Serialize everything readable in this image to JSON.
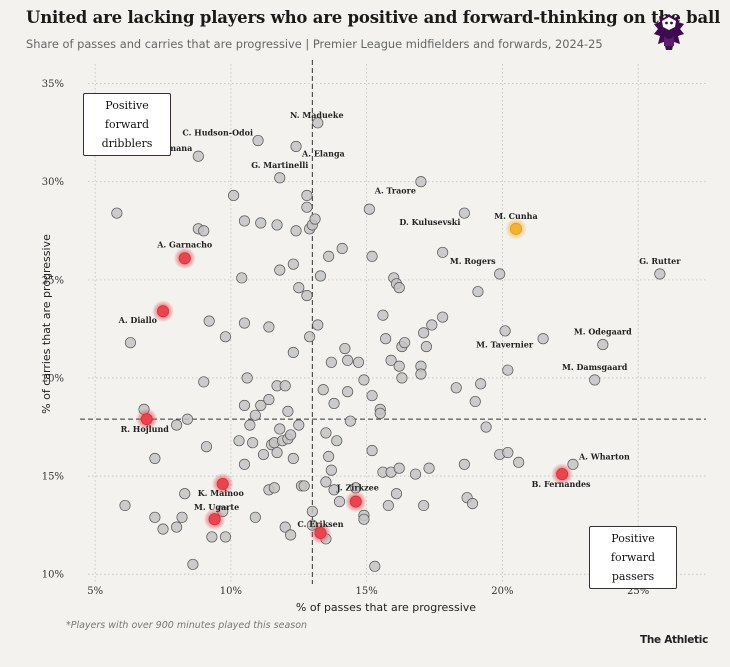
{
  "header": {
    "title": "United are lacking players who are positive and forward-thinking on the ball",
    "subtitle": "Share of passes and carries that are progressive | Premier League midfielders and forwards, 2024-25"
  },
  "annotations": {
    "top_left_box": [
      "Positive forward",
      "dribblers"
    ],
    "bottom_right_box": [
      "Positive forward",
      "passers"
    ]
  },
  "footer": {
    "note": "*Players with over 900 minutes played this season",
    "brand": "The Athletic"
  },
  "colors": {
    "background": "#f3f2ee",
    "neutral_dot": "#c4c4c4",
    "united_highlight": "#e8454f",
    "cunha_highlight": "#f2b233",
    "reference_line": "#333333"
  },
  "chart_data": {
    "type": "scatter",
    "xlabel": "% of passes that are progressive",
    "ylabel": "% of carries that are progressive",
    "xlim": [
      4,
      27.5
    ],
    "ylim": [
      9.5,
      36
    ],
    "x_ticks": [
      5,
      10,
      15,
      20,
      25
    ],
    "y_ticks": [
      10,
      15,
      20,
      25,
      30,
      35
    ],
    "x_tick_labels": [
      "5%",
      "10%",
      "15%",
      "20%",
      "25%"
    ],
    "y_tick_labels": [
      "10%",
      "15%",
      "20%",
      "25%",
      "30%",
      "35%"
    ],
    "grid": true,
    "reference_lines": {
      "x": 13.0,
      "y": 17.9
    },
    "labeled_players": [
      {
        "name": "C. Hudson-Odoi",
        "x": 11.0,
        "y": 32.1,
        "highlight": "none"
      },
      {
        "name": "N. Madueke",
        "x": 13.2,
        "y": 33.0,
        "highlight": "none"
      },
      {
        "name": "K. Sulemana",
        "x": 8.8,
        "y": 31.3,
        "highlight": "none"
      },
      {
        "name": "A. Elanga",
        "x": 12.4,
        "y": 31.8,
        "highlight": "none"
      },
      {
        "name": "G. Martinelli",
        "x": 11.8,
        "y": 30.2,
        "highlight": "none"
      },
      {
        "name": "A. Traore",
        "x": 17.0,
        "y": 30.0,
        "highlight": "none"
      },
      {
        "name": "D. Kulusevski",
        "x": 18.6,
        "y": 28.4,
        "highlight": "none"
      },
      {
        "name": "M. Cunha",
        "x": 20.5,
        "y": 27.6,
        "highlight": "gold"
      },
      {
        "name": "A. Garnacho",
        "x": 8.3,
        "y": 26.1,
        "highlight": "red"
      },
      {
        "name": "M. Rogers",
        "x": 19.9,
        "y": 25.3,
        "highlight": "none"
      },
      {
        "name": "G. Rutter",
        "x": 25.8,
        "y": 25.3,
        "highlight": "none"
      },
      {
        "name": "A. Diallo",
        "x": 7.5,
        "y": 23.4,
        "highlight": "red"
      },
      {
        "name": "M. Odegaard",
        "x": 23.7,
        "y": 21.7,
        "highlight": "none"
      },
      {
        "name": "M. Tavernier",
        "x": 21.5,
        "y": 22.0,
        "highlight": "none"
      },
      {
        "name": "M. Damsgaard",
        "x": 23.4,
        "y": 19.9,
        "highlight": "none"
      },
      {
        "name": "R. Hojlund",
        "x": 6.9,
        "y": 17.9,
        "highlight": "red"
      },
      {
        "name": "A. Wharton",
        "x": 22.6,
        "y": 15.6,
        "highlight": "none"
      },
      {
        "name": "B. Fernandes",
        "x": 22.2,
        "y": 15.1,
        "highlight": "red"
      },
      {
        "name": "K. Mainoo",
        "x": 9.7,
        "y": 14.6,
        "highlight": "red"
      },
      {
        "name": "J. Zirkzee",
        "x": 14.6,
        "y": 13.7,
        "highlight": "red"
      },
      {
        "name": "M. Ugarte",
        "x": 9.4,
        "y": 12.8,
        "highlight": "red"
      },
      {
        "name": "C. Eriksen",
        "x": 13.3,
        "y": 12.1,
        "highlight": "red"
      }
    ],
    "other_players": [
      [
        5.8,
        28.4
      ],
      [
        6.3,
        21.8
      ],
      [
        6.1,
        13.5
      ],
      [
        6.8,
        18.4
      ],
      [
        7.2,
        15.9
      ],
      [
        7.2,
        12.9
      ],
      [
        7.5,
        12.3
      ],
      [
        8.0,
        17.6
      ],
      [
        8.0,
        12.4
      ],
      [
        8.2,
        12.9
      ],
      [
        8.3,
        14.1
      ],
      [
        8.4,
        17.9
      ],
      [
        8.6,
        10.5
      ],
      [
        8.8,
        27.6
      ],
      [
        9.0,
        27.5
      ],
      [
        9.0,
        19.8
      ],
      [
        9.1,
        16.5
      ],
      [
        9.2,
        22.9
      ],
      [
        9.3,
        11.9
      ],
      [
        9.7,
        13.2
      ],
      [
        9.8,
        11.9
      ],
      [
        9.8,
        22.1
      ],
      [
        10.1,
        29.3
      ],
      [
        10.4,
        25.1
      ],
      [
        10.5,
        28.0
      ],
      [
        10.5,
        22.8
      ],
      [
        10.5,
        18.6
      ],
      [
        10.5,
        15.6
      ],
      [
        10.3,
        16.8
      ],
      [
        10.6,
        20.0
      ],
      [
        10.7,
        17.6
      ],
      [
        10.8,
        16.7
      ],
      [
        10.9,
        18.1
      ],
      [
        10.9,
        12.9
      ],
      [
        11.1,
        27.9
      ],
      [
        11.1,
        18.6
      ],
      [
        11.2,
        16.1
      ],
      [
        11.4,
        22.6
      ],
      [
        11.4,
        18.9
      ],
      [
        11.4,
        14.3
      ],
      [
        11.5,
        16.6
      ],
      [
        11.6,
        16.7
      ],
      [
        11.6,
        14.4
      ],
      [
        11.7,
        27.8
      ],
      [
        11.7,
        19.6
      ],
      [
        11.7,
        16.2
      ],
      [
        11.8,
        25.5
      ],
      [
        11.8,
        17.4
      ],
      [
        11.9,
        16.8
      ],
      [
        12.0,
        19.6
      ],
      [
        12.0,
        12.4
      ],
      [
        12.1,
        18.3
      ],
      [
        12.1,
        16.9
      ],
      [
        12.2,
        17.1
      ],
      [
        12.2,
        12.0
      ],
      [
        12.3,
        25.8
      ],
      [
        12.3,
        21.3
      ],
      [
        12.3,
        15.9
      ],
      [
        12.4,
        27.5
      ],
      [
        12.5,
        24.6
      ],
      [
        12.5,
        17.6
      ],
      [
        12.6,
        14.5
      ],
      [
        12.7,
        14.5
      ],
      [
        12.8,
        29.3
      ],
      [
        12.8,
        28.7
      ],
      [
        12.8,
        24.2
      ],
      [
        12.9,
        27.6
      ],
      [
        12.9,
        22.1
      ],
      [
        13.0,
        13.2
      ],
      [
        13.0,
        12.5
      ],
      [
        13.0,
        27.8
      ],
      [
        13.1,
        28.1
      ],
      [
        13.2,
        22.7
      ],
      [
        13.3,
        25.2
      ],
      [
        13.4,
        19.4
      ],
      [
        13.5,
        17.2
      ],
      [
        13.5,
        14.7
      ],
      [
        13.5,
        11.8
      ],
      [
        13.6,
        16.0
      ],
      [
        13.6,
        26.2
      ],
      [
        13.7,
        15.3
      ],
      [
        13.7,
        20.8
      ],
      [
        13.8,
        18.7
      ],
      [
        13.8,
        14.3
      ],
      [
        13.9,
        16.8
      ],
      [
        14.0,
        13.7
      ],
      [
        14.1,
        26.6
      ],
      [
        14.2,
        21.5
      ],
      [
        14.3,
        20.9
      ],
      [
        14.3,
        19.3
      ],
      [
        14.4,
        17.8
      ],
      [
        14.6,
        14.4
      ],
      [
        14.7,
        20.8
      ],
      [
        14.9,
        13.0
      ],
      [
        14.9,
        12.8
      ],
      [
        14.9,
        19.9
      ],
      [
        15.1,
        28.6
      ],
      [
        15.2,
        26.2
      ],
      [
        15.2,
        19.1
      ],
      [
        15.2,
        16.3
      ],
      [
        15.3,
        10.4
      ],
      [
        15.5,
        18.4
      ],
      [
        15.5,
        18.2
      ],
      [
        15.6,
        23.2
      ],
      [
        15.6,
        15.2
      ],
      [
        15.7,
        22.0
      ],
      [
        15.8,
        13.5
      ],
      [
        15.9,
        20.9
      ],
      [
        15.9,
        15.2
      ],
      [
        16.0,
        25.1
      ],
      [
        16.1,
        24.8
      ],
      [
        16.1,
        14.1
      ],
      [
        16.2,
        24.6
      ],
      [
        16.2,
        20.6
      ],
      [
        16.2,
        15.4
      ],
      [
        16.3,
        21.6
      ],
      [
        16.3,
        20.0
      ],
      [
        16.4,
        21.8
      ],
      [
        16.8,
        15.1
      ],
      [
        17.0,
        20.6
      ],
      [
        17.0,
        20.2
      ],
      [
        17.1,
        13.5
      ],
      [
        17.1,
        22.3
      ],
      [
        17.2,
        21.6
      ],
      [
        17.3,
        15.4
      ],
      [
        17.4,
        22.7
      ],
      [
        17.8,
        23.1
      ],
      [
        17.8,
        26.4
      ],
      [
        18.3,
        19.5
      ],
      [
        18.6,
        15.6
      ],
      [
        18.7,
        13.9
      ],
      [
        18.9,
        13.6
      ],
      [
        19.0,
        18.8
      ],
      [
        19.1,
        24.4
      ],
      [
        19.2,
        19.7
      ],
      [
        19.4,
        17.5
      ],
      [
        19.9,
        16.1
      ],
      [
        20.1,
        22.4
      ],
      [
        20.2,
        16.2
      ],
      [
        20.2,
        20.4
      ],
      [
        20.6,
        15.7
      ]
    ]
  }
}
